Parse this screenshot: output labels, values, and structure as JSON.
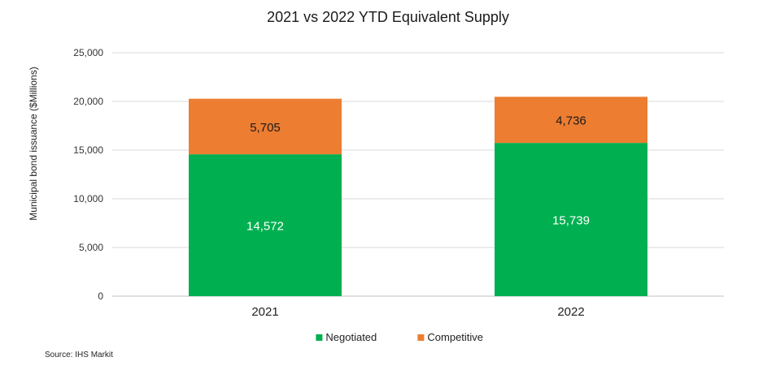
{
  "chart_data": {
    "type": "bar",
    "stacked": true,
    "title": "2021 vs 2022 YTD Equivalent Supply",
    "xlabel": "",
    "ylabel": "Municipal bond issuance ($Millions)",
    "categories": [
      "2021",
      "2022"
    ],
    "series": [
      {
        "name": "Negotiated",
        "values": [
          14572,
          15739
        ],
        "labels": [
          "14,572",
          "15,739"
        ],
        "color": "#00b050",
        "label_color": "#ffffff"
      },
      {
        "name": "Competitive",
        "values": [
          5705,
          4736
        ],
        "labels": [
          "5,705",
          "4,736"
        ],
        "color": "#ed7d31",
        "label_color": "#1a1a1a"
      }
    ],
    "ylim": [
      0,
      25000
    ],
    "yticks": [
      0,
      5000,
      10000,
      15000,
      20000,
      25000
    ],
    "ytick_labels": [
      "0",
      "5,000",
      "10,000",
      "15,000",
      "20,000",
      "25,000"
    ],
    "grid": true,
    "legend_position": "bottom"
  },
  "source": "Source: IHS Markit",
  "colors": {
    "grid": "#d9d9d9",
    "axis": "#bfbfbf"
  }
}
